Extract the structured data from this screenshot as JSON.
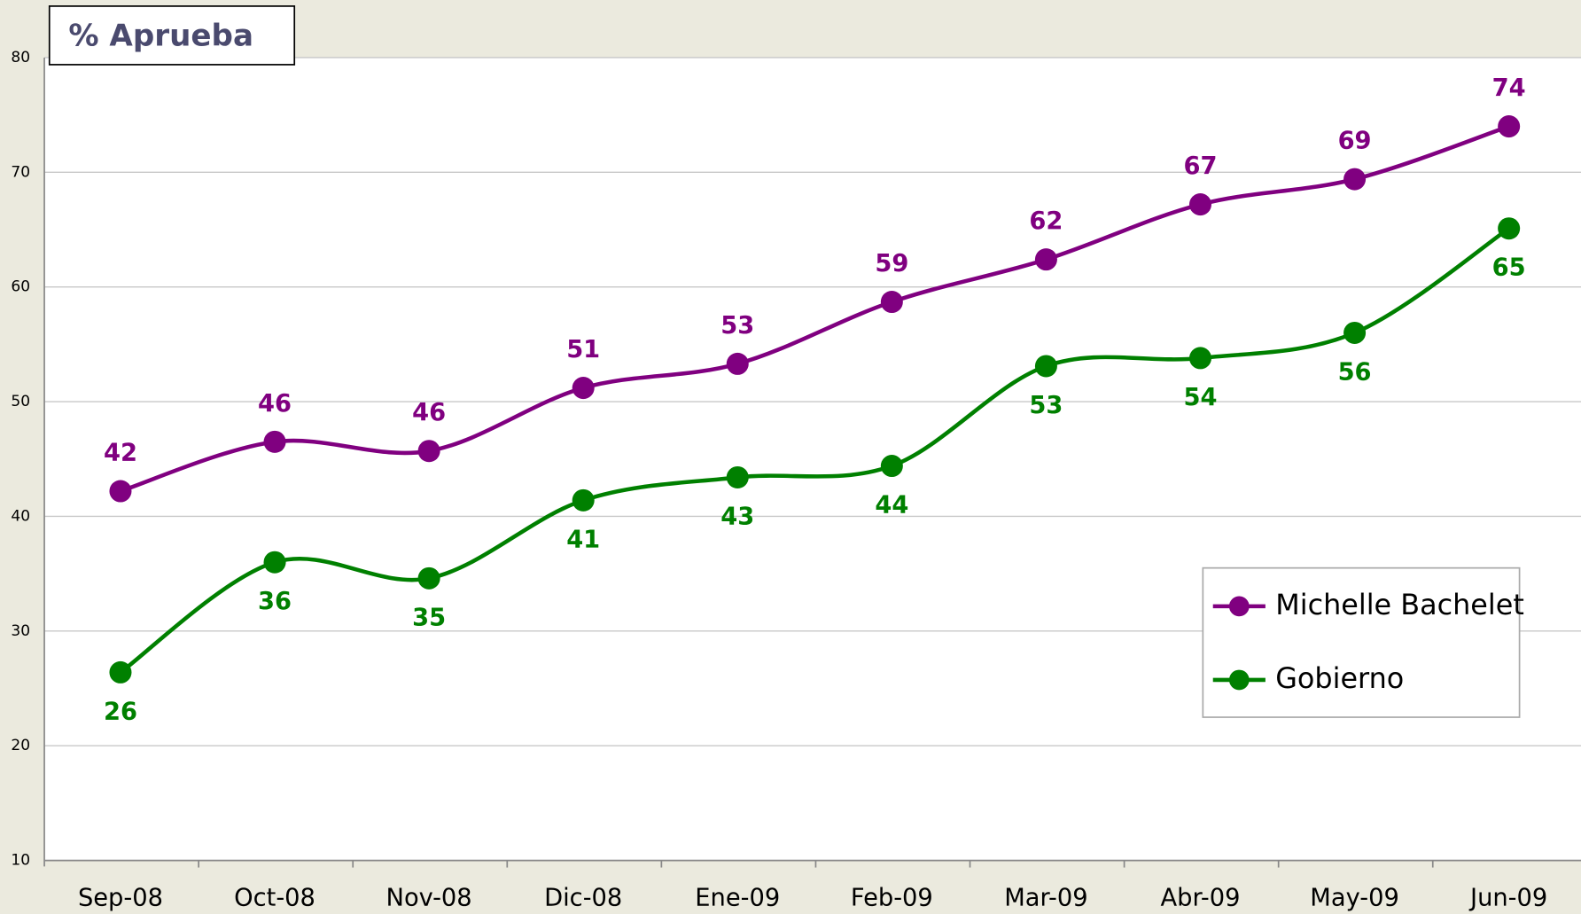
{
  "chart_data": {
    "type": "line",
    "title": "% Aprueba",
    "categories": [
      "Sep-08",
      "Oct-08",
      "Nov-08",
      "Dic-08",
      "Ene-09",
      "Feb-09",
      "Mar-09",
      "Abr-09",
      "May-09",
      "Jun-09"
    ],
    "series": [
      {
        "name": "Michelle Bachelet",
        "color": "#800080",
        "values": [
          42.2,
          46.5,
          45.7,
          51.2,
          53.3,
          58.7,
          62.4,
          67.2,
          69.4,
          74.0
        ],
        "value_labels": [
          "42",
          "46",
          "46",
          "51",
          "53",
          "59",
          "62",
          "67",
          "69",
          "74"
        ]
      },
      {
        "name": "Gobierno",
        "color": "#008000",
        "values": [
          26.4,
          36.0,
          34.6,
          41.4,
          43.4,
          44.4,
          53.1,
          53.8,
          56.0,
          65.1
        ],
        "value_labels": [
          "26",
          "36",
          "35",
          "41",
          "43",
          "44",
          "53",
          "54",
          "56",
          "65"
        ]
      }
    ],
    "ylim": [
      10,
      80
    ],
    "yticks": [
      10,
      20,
      30,
      40,
      50,
      60,
      70,
      80
    ],
    "grid": true,
    "legend": "right"
  }
}
